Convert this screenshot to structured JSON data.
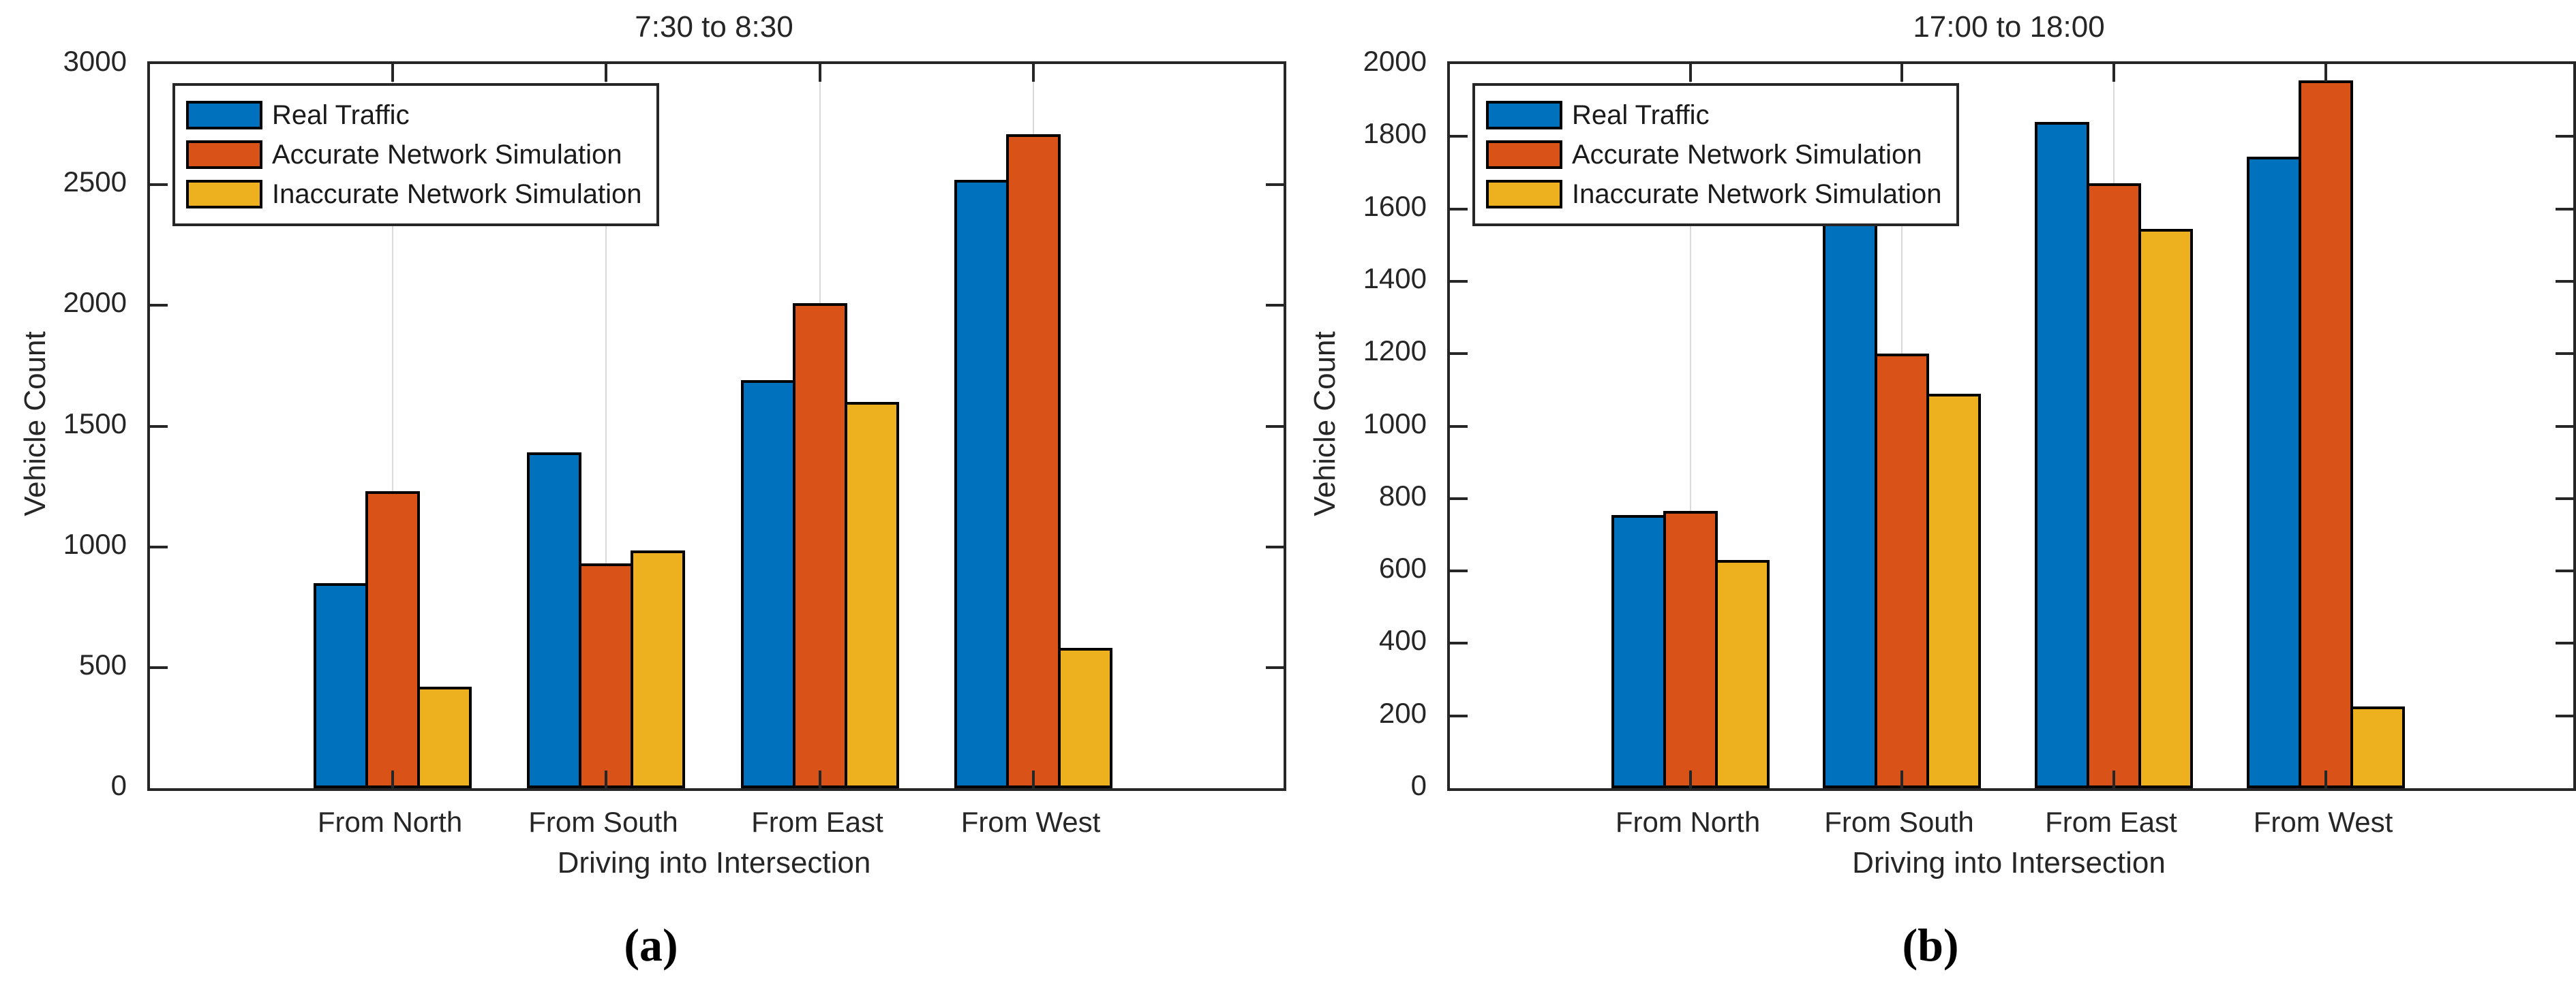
{
  "figure": {
    "captions": [
      "(a)",
      "(b)"
    ]
  },
  "colors": {
    "axis": "#262626",
    "grid": "#d9d9d9",
    "bar_edge": "#000000",
    "background": "#ffffff"
  },
  "chart_data": [
    {
      "type": "bar",
      "title": "7:30 to 8:30",
      "xlabel": "Driving into Intersection",
      "ylabel": "Vehicle Count",
      "ylim": [
        0,
        3000
      ],
      "ytick_step": 500,
      "yticks": [
        0,
        500,
        1000,
        1500,
        2000,
        2500,
        3000
      ],
      "grid": "x-only",
      "legend_position": "top-left",
      "categories": [
        "From North",
        "From South",
        "From East",
        "From West"
      ],
      "series": [
        {
          "name": "Real Traffic",
          "color": "#0072BD",
          "values": [
            850,
            1390,
            1690,
            2520
          ]
        },
        {
          "name": "Accurate Network Simulation",
          "color": "#D95319",
          "values": [
            1230,
            930,
            2010,
            2710
          ]
        },
        {
          "name": "Inaccurate Network Simulation",
          "color": "#EDB120",
          "values": [
            420,
            985,
            1600,
            580
          ]
        }
      ]
    },
    {
      "type": "bar",
      "title": "17:00 to 18:00",
      "xlabel": "Driving into Intersection",
      "ylabel": "Vehicle Count",
      "ylim": [
        0,
        2000
      ],
      "ytick_step": 200,
      "yticks": [
        0,
        200,
        400,
        600,
        800,
        1000,
        1200,
        1400,
        1600,
        1800,
        2000
      ],
      "grid": "x-only",
      "legend_position": "top-left",
      "categories": [
        "From North",
        "From South",
        "From East",
        "From West"
      ],
      "series": [
        {
          "name": "Real Traffic",
          "color": "#0072BD",
          "values": [
            755,
            1560,
            1840,
            1745
          ]
        },
        {
          "name": "Accurate Network Simulation",
          "color": "#D95319",
          "values": [
            765,
            1200,
            1670,
            1955
          ]
        },
        {
          "name": "Inaccurate Network Simulation",
          "color": "#EDB120",
          "values": [
            630,
            1090,
            1545,
            225
          ]
        }
      ]
    }
  ]
}
